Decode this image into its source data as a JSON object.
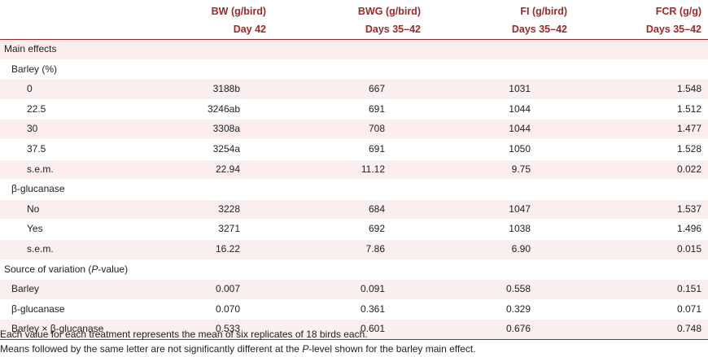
{
  "table": {
    "headers_top": [
      "",
      "BW (g/bird)",
      "BWG (g/bird)",
      "FI (g/bird)",
      "FCR (g/g)"
    ],
    "headers_sub": [
      "",
      "Day 42",
      "Days 35–42",
      "Days 35–42",
      "Days 35–42"
    ],
    "rows": [
      {
        "label": "Main effects",
        "indent": 0,
        "cells": [
          "",
          "",
          "",
          ""
        ]
      },
      {
        "label": "Barley (%)",
        "indent": 1,
        "cells": [
          "",
          "",
          "",
          ""
        ]
      },
      {
        "label": "0",
        "indent": 2,
        "cells": [
          "3188b",
          "667",
          "1031",
          "1.548"
        ]
      },
      {
        "label": "22.5",
        "indent": 2,
        "cells": [
          "3246ab",
          "691",
          "1044",
          "1.512"
        ]
      },
      {
        "label": "30",
        "indent": 2,
        "cells": [
          "3308a",
          "708",
          "1044",
          "1.477"
        ]
      },
      {
        "label": "37.5",
        "indent": 2,
        "cells": [
          "3254a",
          "691",
          "1050",
          "1.528"
        ]
      },
      {
        "label": "s.e.m.",
        "indent": 2,
        "cells": [
          "22.94",
          "11.12",
          "9.75",
          "0.022"
        ]
      },
      {
        "label": "β-glucanase",
        "indent": 1,
        "cells": [
          "",
          "",
          "",
          ""
        ]
      },
      {
        "label": "No",
        "indent": 2,
        "cells": [
          "3228",
          "684",
          "1047",
          "1.537"
        ]
      },
      {
        "label": "Yes",
        "indent": 2,
        "cells": [
          "3271",
          "692",
          "1038",
          "1.496"
        ]
      },
      {
        "label": "s.e.m.",
        "indent": 2,
        "cells": [
          "16.22",
          "7.86",
          "6.90",
          "0.015"
        ]
      },
      {
        "label": "Source of variation (P-value)",
        "indent": 0,
        "cells": [
          "",
          "",
          "",
          ""
        ]
      },
      {
        "label": "Barley",
        "indent": 1,
        "cells": [
          "0.007",
          "0.091",
          "0.558",
          "0.151"
        ]
      },
      {
        "label": "β-glucanase",
        "indent": 1,
        "cells": [
          "0.070",
          "0.361",
          "0.329",
          "0.071"
        ]
      },
      {
        "label": "Barley × β-glucanase",
        "indent": 1,
        "cells": [
          "0.533",
          "0.601",
          "0.676",
          "0.748"
        ]
      }
    ]
  },
  "notes": [
    "Each value for each treatment represents the mean of six replicates of 18 birds each.",
    "Means followed by the same letter are not significantly different at the P-level shown for the barley main effect."
  ],
  "colors": {
    "header_text": "#a02828",
    "row_shade": "#fbeeee",
    "rule": "#a02828"
  }
}
